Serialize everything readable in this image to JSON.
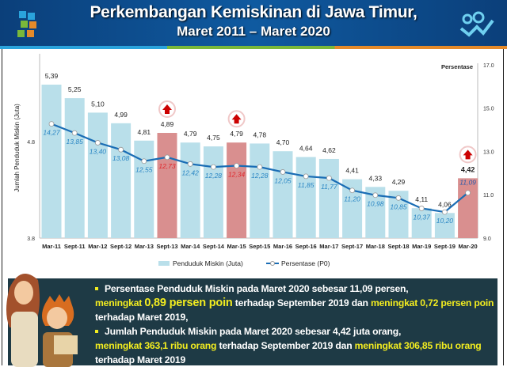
{
  "header": {
    "title": "Perkembangan Kemiskinan di Jawa Timur,",
    "subtitle": "Maret 2011  –  Maret 2020"
  },
  "chart_data": {
    "type": "bar+line",
    "categories": [
      "Mar-11",
      "Sept-11",
      "Mar-12",
      "Sept-12",
      "Mar-13",
      "Sept-13",
      "Mar-14",
      "Sept-14",
      "Mar-15",
      "Sept-15",
      "Mar-16",
      "Sept-16",
      "Mar-17",
      "Sept-17",
      "Mar-18",
      "Sept-18",
      "Mar-19",
      "Sept-19",
      "Mar-20"
    ],
    "series": [
      {
        "name": "Penduduk Miskin (Juta)",
        "type": "bar",
        "axis": "left",
        "values": [
          5.39,
          5.25,
          5.1,
          4.99,
          4.81,
          4.89,
          4.79,
          4.75,
          4.79,
          4.78,
          4.7,
          4.64,
          4.62,
          4.41,
          4.33,
          4.29,
          4.11,
          4.06,
          4.42
        ],
        "labels": [
          "5,39",
          "5,25",
          "5,10",
          "4,99",
          "4,81",
          "4,89",
          "4,79",
          "4,75",
          "4,79",
          "4,78",
          "4,70",
          "4,64",
          "4,62",
          "4,41",
          "4,33",
          "4,29",
          "4,11",
          "4,06",
          "4,42"
        ]
      },
      {
        "name": "Persentase (P0)",
        "type": "line",
        "axis": "right",
        "values": [
          14.27,
          13.85,
          13.4,
          13.08,
          12.55,
          12.73,
          12.42,
          12.28,
          12.34,
          12.28,
          12.05,
          11.85,
          11.77,
          11.2,
          10.98,
          10.85,
          10.37,
          10.2,
          11.09
        ],
        "labels": [
          "14,27",
          "13,85",
          "13,40",
          "13,08",
          "12,55",
          "12,73",
          "12,42",
          "12,28",
          "12,34",
          "12,28",
          "12,05",
          "11,85",
          "11,77",
          "11,20",
          "10,98",
          "10,85",
          "10,37",
          "10,20",
          "11,09"
        ]
      }
    ],
    "increase_highlight": [
      "Sept-13",
      "Mar-15",
      "Mar-20"
    ],
    "ylabel": "Jumlah Penduduk Miskin (Juta)",
    "y2label": "Persentase",
    "ylim": [
      3.8,
      5.8
    ],
    "yticks": [
      "3.8",
      "4.8"
    ],
    "y2lim": [
      9.0,
      17.0
    ],
    "y2ticks": [
      "9.0",
      "11.0",
      "13.0",
      "15.0",
      "17.0"
    ],
    "grid": false,
    "legend_position": "bottom",
    "colors": {
      "bar": "#b9dfea",
      "bar_highlight": "#d98f8f",
      "line": "#1a6db5",
      "label_blue": "#2a86c4",
      "label_red": "#e0252a",
      "arrow": "#cc0000"
    }
  },
  "info": {
    "b1_a": "Persentase Penduduk Miskin pada Maret 2020 sebesar 11,09 persen,",
    "b1_b": "meningkat",
    "b1_c": "0,89 persen poin",
    "b1_d": "terhadap September 2019 dan",
    "b1_e": "meningkat  0,72 persen poin",
    "b1_f": "terhadap Maret 2019,",
    "b2_a": "Jumlah Penduduk Miskin pada Maret 2020 sebesar  4,42  juta orang,",
    "b2_b": "meningkat 363,1 ribu orang",
    "b2_c": "terhadap September 2019 dan",
    "b2_d": "meningkat 306,85 ribu orang",
    "b2_e": "terhadap Maret 2019"
  }
}
